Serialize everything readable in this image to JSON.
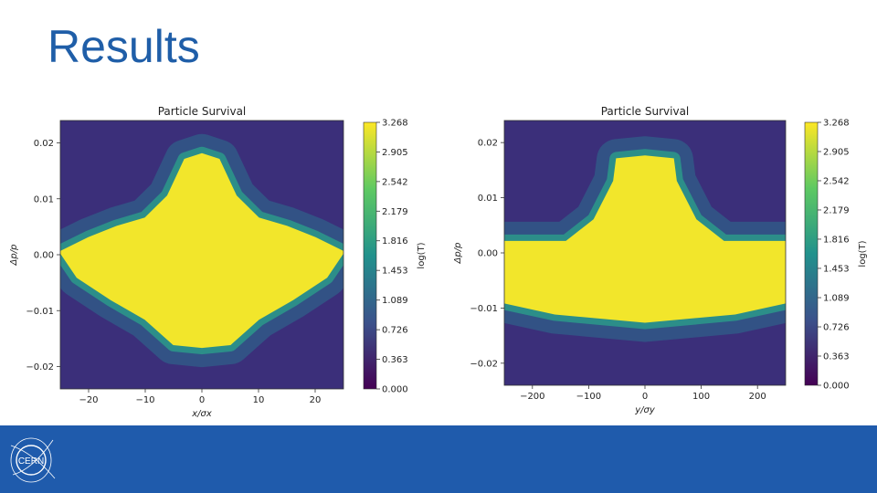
{
  "slide": {
    "title": "Results"
  },
  "colors": {
    "title": "#1f5ea8",
    "footer": "#1f5bac",
    "cmap_low": "#440154",
    "cmap_high": "#fde725"
  },
  "logo": {
    "text": "CERN",
    "icon": "cern-logo-icon"
  },
  "chart_data": [
    {
      "type": "heatmap",
      "title": "Particle Survival",
      "xlabel": "x/σx",
      "ylabel": "Δp/p",
      "xlim": [
        -25,
        25
      ],
      "ylim": [
        -0.024,
        0.024
      ],
      "xticks": [
        -20,
        -10,
        0,
        10,
        20
      ],
      "xtick_labels": [
        "−20",
        "−10",
        "0",
        "10",
        "20"
      ],
      "yticks": [
        -0.02,
        -0.01,
        0.0,
        0.01,
        0.02
      ],
      "ytick_labels": [
        "−0.02",
        "−0.01",
        "0.00",
        "0.01",
        "0.02"
      ],
      "colorbar": {
        "label": "log(T)",
        "min": 0.0,
        "max": 3.268,
        "ticks": [
          0.0,
          0.363,
          0.726,
          1.089,
          1.453,
          1.816,
          2.179,
          2.542,
          2.905,
          3.268
        ],
        "tick_labels": [
          "0.000",
          "0.363",
          "0.726",
          "1.089",
          "1.453",
          "1.816",
          "2.179",
          "2.542",
          "2.905",
          "3.268"
        ]
      },
      "surviving_region_value": 3.268,
      "surviving_region_outline": [
        [
          -25,
          0.0005
        ],
        [
          -20,
          0.003
        ],
        [
          -15,
          0.005
        ],
        [
          -10,
          0.0065
        ],
        [
          -6,
          0.0105
        ],
        [
          -3,
          0.017
        ],
        [
          0,
          0.018
        ],
        [
          3,
          0.017
        ],
        [
          6,
          0.0105
        ],
        [
          10,
          0.0065
        ],
        [
          15,
          0.005
        ],
        [
          20,
          0.003
        ],
        [
          25,
          0.0005
        ],
        [
          22,
          -0.004
        ],
        [
          16,
          -0.008
        ],
        [
          10,
          -0.0115
        ],
        [
          5,
          -0.016
        ],
        [
          0,
          -0.0165
        ],
        [
          -5,
          -0.016
        ],
        [
          -10,
          -0.0115
        ],
        [
          -16,
          -0.008
        ],
        [
          -22,
          -0.004
        ]
      ]
    },
    {
      "type": "heatmap",
      "title": "Particle Survival",
      "xlabel": "y/σy",
      "ylabel": "Δp/p",
      "xlim": [
        -250,
        250
      ],
      "ylim": [
        -0.024,
        0.024
      ],
      "xticks": [
        -200,
        -100,
        0,
        100,
        200
      ],
      "xtick_labels": [
        "−200",
        "−100",
        "0",
        "100",
        "200"
      ],
      "yticks": [
        -0.02,
        -0.01,
        0.0,
        0.01,
        0.02
      ],
      "ytick_labels": [
        "−0.02",
        "−0.01",
        "0.00",
        "0.01",
        "0.02"
      ],
      "colorbar": {
        "label": "log(T)",
        "min": 0.0,
        "max": 3.268,
        "ticks": [
          0.0,
          0.363,
          0.726,
          1.089,
          1.453,
          1.816,
          2.179,
          2.542,
          2.905,
          3.268
        ],
        "tick_labels": [
          "0.000",
          "0.363",
          "0.726",
          "1.089",
          "1.453",
          "1.816",
          "2.179",
          "2.542",
          "2.905",
          "3.268"
        ]
      },
      "surviving_region_value": 3.268,
      "surviving_region_outline": [
        [
          -250,
          0.002
        ],
        [
          -140,
          0.002
        ],
        [
          -90,
          0.006
        ],
        [
          -55,
          0.013
        ],
        [
          -50,
          0.017
        ],
        [
          0,
          0.0175
        ],
        [
          50,
          0.017
        ],
        [
          55,
          0.013
        ],
        [
          90,
          0.006
        ],
        [
          140,
          0.002
        ],
        [
          250,
          0.002
        ],
        [
          250,
          -0.009
        ],
        [
          160,
          -0.011
        ],
        [
          0,
          -0.0125
        ],
        [
          -160,
          -0.011
        ],
        [
          -250,
          -0.009
        ]
      ]
    }
  ]
}
